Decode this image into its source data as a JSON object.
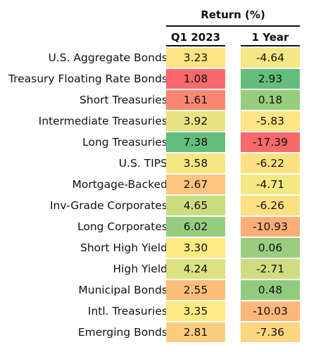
{
  "chart_data": {
    "type": "heatmap",
    "title": "",
    "group_header": "Return (%)",
    "columns": [
      "Q1 2023",
      "1 Year"
    ],
    "rows": [
      {
        "label": "U.S. Aggregate Bonds",
        "values": [
          3.23,
          -4.64
        ],
        "display": [
          "3.23",
          "-4.64"
        ]
      },
      {
        "label": "Treasury Floating Rate Bonds",
        "values": [
          1.08,
          2.93
        ],
        "display": [
          "1.08",
          "2.93"
        ]
      },
      {
        "label": "Short Treasuries",
        "values": [
          1.61,
          0.18
        ],
        "display": [
          "1.61",
          "0.18"
        ]
      },
      {
        "label": "Intermediate Treasuries",
        "values": [
          3.92,
          -5.83
        ],
        "display": [
          "3.92",
          "-5.83"
        ]
      },
      {
        "label": "Long Treasuries",
        "values": [
          7.38,
          -17.39
        ],
        "display": [
          "7.38",
          "-17.39"
        ]
      },
      {
        "label": "U.S. TIPS",
        "values": [
          3.58,
          -6.22
        ],
        "display": [
          "3.58",
          "-6.22"
        ]
      },
      {
        "label": "Mortgage-Backed",
        "values": [
          2.67,
          -4.71
        ],
        "display": [
          "2.67",
          "-4.71"
        ]
      },
      {
        "label": "Inv-Grade Corporates",
        "values": [
          4.65,
          -6.26
        ],
        "display": [
          "4.65",
          "-6.26"
        ]
      },
      {
        "label": "Long Corporates",
        "values": [
          6.02,
          -10.93
        ],
        "display": [
          "6.02",
          "-10.93"
        ]
      },
      {
        "label": "Short High Yield",
        "values": [
          3.3,
          0.06
        ],
        "display": [
          "3.30",
          "0.06"
        ]
      },
      {
        "label": "High Yield",
        "values": [
          4.24,
          -2.71
        ],
        "display": [
          "4.24",
          "-2.71"
        ]
      },
      {
        "label": "Municipal Bonds",
        "values": [
          2.55,
          0.48
        ],
        "display": [
          "2.55",
          "0.48"
        ]
      },
      {
        "label": "Intl. Treasuries",
        "values": [
          3.35,
          -10.03
        ],
        "display": [
          "3.35",
          "-10.03"
        ]
      },
      {
        "label": "Emerging Bonds",
        "values": [
          2.81,
          -7.36
        ],
        "display": [
          "2.81",
          "-7.36"
        ]
      }
    ],
    "colors": {
      "high": "#63be7b",
      "mid": "#ffeb84",
      "low": "#f8696b"
    },
    "grid": false,
    "legend": "none"
  }
}
